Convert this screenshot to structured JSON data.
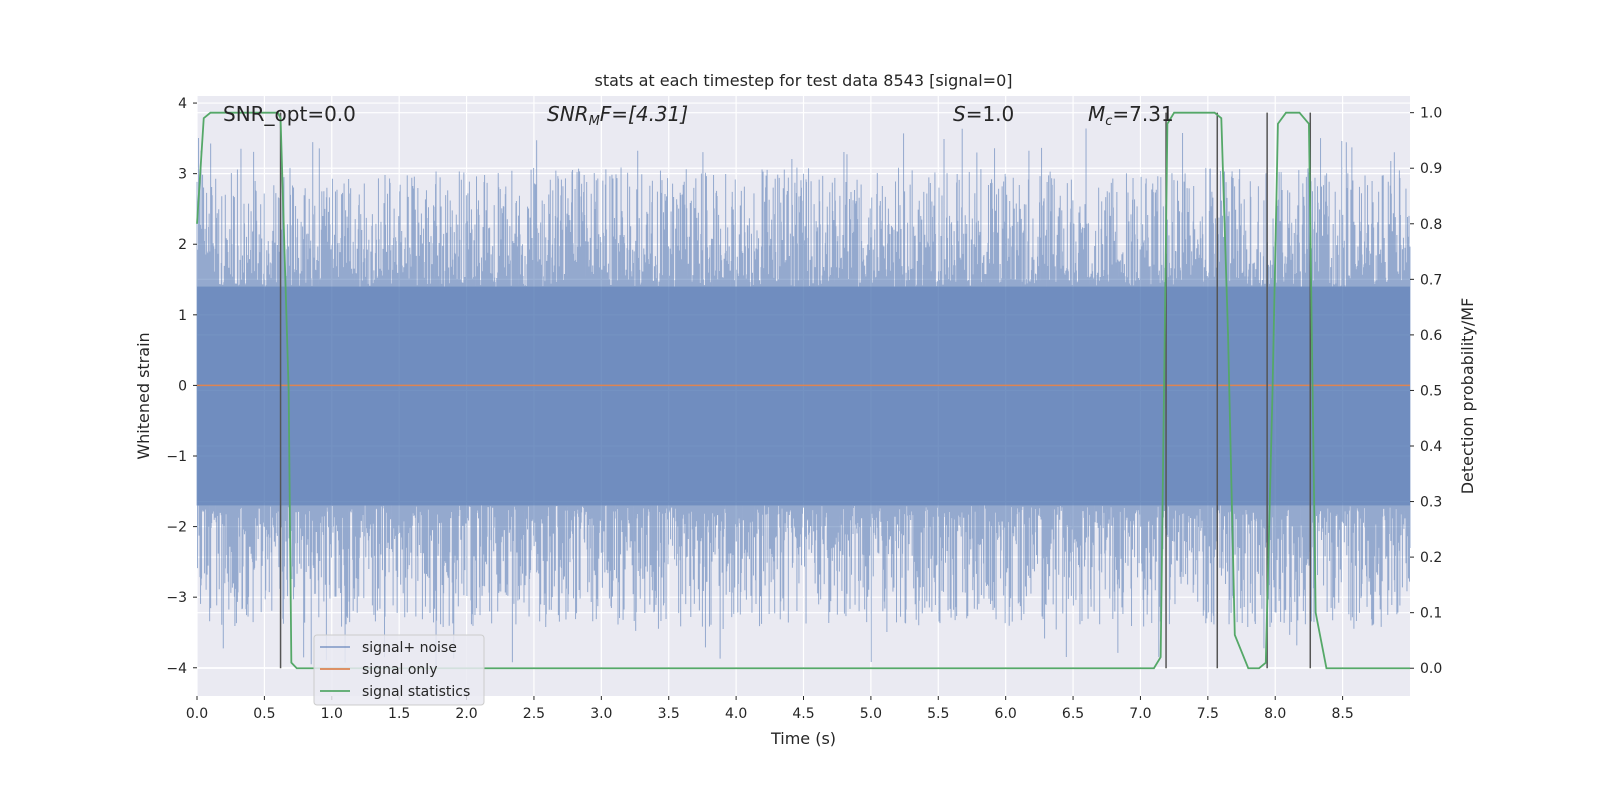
{
  "chart_data": {
    "type": "line",
    "title": "stats at each timestep for test data 8543 [signal=0]",
    "xlabel": "Time (s)",
    "ylabel_left": "Whitened strain",
    "ylabel_right": "Detection probability/MF",
    "xlim": [
      0.0,
      9.0
    ],
    "ylim_left": [
      -4.4,
      4.1
    ],
    "ylim_right": [
      -0.05,
      1.03
    ],
    "x_ticks": [
      "0.0",
      "0.5",
      "1.0",
      "1.5",
      "2.0",
      "2.5",
      "3.0",
      "3.5",
      "4.0",
      "4.5",
      "5.0",
      "5.5",
      "6.0",
      "6.5",
      "7.0",
      "7.5",
      "8.0",
      "8.5"
    ],
    "y_ticks_left": [
      "−4",
      "−3",
      "−2",
      "−1",
      "0",
      "1",
      "2",
      "3",
      "4"
    ],
    "y_ticks_right": [
      "0.0",
      "0.1",
      "0.2",
      "0.3",
      "0.4",
      "0.5",
      "0.6",
      "0.7",
      "0.8",
      "0.9",
      "1.0"
    ],
    "grid": true,
    "background": "#eaeaf2",
    "legend_position": "lower-left",
    "annotations": {
      "snr_opt": "SNR_opt=0.0",
      "snr_mf_prefix": "SNR",
      "snr_mf_sub": "M",
      "snr_mf_suffix": "F=[4.31]",
      "s_label": "S",
      "s_value": "=1.0",
      "mc_label": "M",
      "mc_sub": "c",
      "mc_value": "=7.31"
    },
    "series": [
      {
        "name": "signal+ noise",
        "color": "#4c72b0",
        "description": "noisy whitened strain, approx amplitude ±2.5 with spikes",
        "band_envelope": {
          "x": [
            0.0,
            9.0
          ],
          "core_low": -1.7,
          "core_high": 1.4,
          "peak_low": -4.0,
          "peak_high": 3.65
        }
      },
      {
        "name": "signal only",
        "color": "#dd8452",
        "x": [
          0.0,
          9.0
        ],
        "y": [
          0.0,
          0.0
        ]
      },
      {
        "name": "signal statistics",
        "color": "#55a868",
        "x": [
          0.0,
          0.05,
          0.1,
          0.15,
          0.55,
          0.6,
          0.62,
          0.68,
          0.7,
          0.74,
          0.8,
          7.1,
          7.15,
          7.2,
          7.25,
          7.55,
          7.6,
          7.65,
          7.7,
          7.8,
          7.88,
          7.93,
          7.98,
          8.02,
          8.08,
          8.18,
          8.25,
          8.3,
          8.38,
          9.0
        ],
        "y": [
          0.8,
          0.99,
          1.0,
          1.0,
          1.0,
          1.0,
          0.99,
          0.5,
          0.01,
          0.0,
          0.0,
          0.0,
          0.02,
          0.98,
          1.0,
          1.0,
          0.99,
          0.6,
          0.06,
          0.0,
          0.0,
          0.01,
          0.5,
          0.98,
          1.0,
          1.0,
          0.98,
          0.1,
          0.0,
          0.0
        ]
      }
    ],
    "vertical_markers_x": [
      0.62,
      7.19,
      7.57,
      7.94,
      8.26
    ]
  }
}
